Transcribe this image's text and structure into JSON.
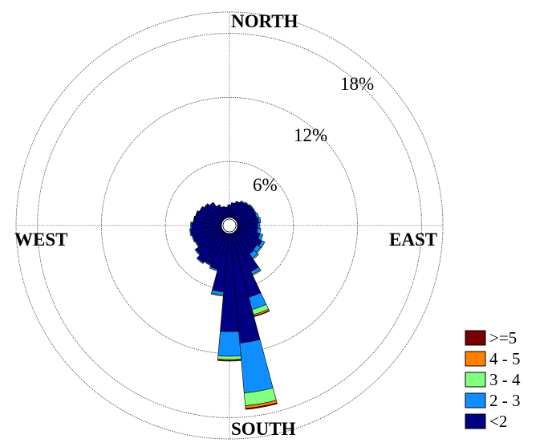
{
  "chart_data": {
    "type": "windrose",
    "directions": {
      "north": "NORTH",
      "south": "SOUTH",
      "east": "EAST",
      "west": "WEST"
    },
    "ring_labels": [
      "6%",
      "12%",
      "18%"
    ],
    "rmax": 20,
    "grid": true,
    "legend_position": "bottom-right",
    "legend": [
      {
        "label": ">=5",
        "color": "#7a0000"
      },
      {
        "label": "4 - 5",
        "color": "#ff8000"
      },
      {
        "label": "3 - 4",
        "color": "#80ff80"
      },
      {
        "label": "2 - 3",
        "color": "#0f8fff"
      },
      {
        "label": "<2",
        "color": "#000080"
      }
    ],
    "speed_bins": [
      "<2",
      "2 - 3",
      "3 - 4",
      "4 - 5",
      ">=5"
    ],
    "sectors_deg": [
      0,
      10,
      20,
      30,
      40,
      50,
      60,
      70,
      80,
      90,
      100,
      110,
      120,
      130,
      140,
      150,
      160,
      170,
      180,
      190,
      200,
      210,
      220,
      230,
      240,
      250,
      260,
      270,
      280,
      290,
      300,
      310,
      320,
      330,
      340,
      350
    ],
    "series": [
      {
        "name": "<2",
        "values": [
          1.2,
          1.4,
          1.6,
          1.7,
          1.8,
          1.9,
          1.9,
          1.9,
          2.0,
          1.9,
          1.9,
          2.2,
          2.6,
          2.4,
          2.5,
          4.0,
          6.2,
          10.3,
          9.2,
          5.5,
          3.5,
          3.3,
          3.5,
          3.1,
          2.7,
          2.8,
          2.9,
          2.8,
          2.6,
          2.5,
          2.3,
          2.1,
          1.9,
          1.4,
          1.1,
          1.0
        ]
      },
      {
        "name": "2 - 3",
        "values": [
          0.0,
          0.0,
          0.0,
          0.1,
          0.1,
          0.1,
          0.1,
          0.2,
          0.2,
          0.2,
          0.3,
          0.3,
          0.3,
          0.4,
          0.5,
          0.3,
          1.2,
          4.7,
          2.3,
          0.3,
          0.15,
          0.1,
          0.1,
          0.1,
          0.1,
          0.1,
          0.1,
          0.1,
          0.05,
          0.05,
          0.05,
          0.05,
          0.0,
          0.0,
          0.0,
          0.0
        ]
      },
      {
        "name": "3 - 4",
        "values": [
          0.0,
          0.0,
          0.0,
          0.0,
          0.0,
          0.0,
          0.0,
          0.0,
          0.0,
          0.0,
          0.0,
          0.0,
          0.0,
          0.1,
          0.1,
          0.1,
          0.5,
          1.2,
          0.3,
          0.1,
          0.0,
          0.0,
          0.0,
          0.0,
          0.0,
          0.0,
          0.0,
          0.0,
          0.0,
          0.0,
          0.0,
          0.0,
          0.0,
          0.0,
          0.0,
          0.0
        ]
      },
      {
        "name": "4 - 5",
        "values": [
          0.0,
          0.0,
          0.0,
          0.0,
          0.0,
          0.0,
          0.0,
          0.0,
          0.0,
          0.0,
          0.0,
          0.0,
          0.0,
          0.0,
          0.0,
          0.0,
          0.15,
          0.25,
          0.1,
          0.0,
          0.0,
          0.0,
          0.0,
          0.0,
          0.0,
          0.0,
          0.0,
          0.0,
          0.0,
          0.0,
          0.0,
          0.0,
          0.0,
          0.0,
          0.0,
          0.0
        ]
      },
      {
        "name": ">=5",
        "values": [
          0.0,
          0.0,
          0.0,
          0.0,
          0.0,
          0.0,
          0.0,
          0.0,
          0.0,
          0.0,
          0.0,
          0.0,
          0.0,
          0.0,
          0.0,
          0.0,
          0.05,
          0.1,
          0.05,
          0.0,
          0.0,
          0.0,
          0.0,
          0.0,
          0.0,
          0.0,
          0.0,
          0.0,
          0.0,
          0.0,
          0.0,
          0.0,
          0.0,
          0.0,
          0.0,
          0.0
        ]
      }
    ]
  }
}
